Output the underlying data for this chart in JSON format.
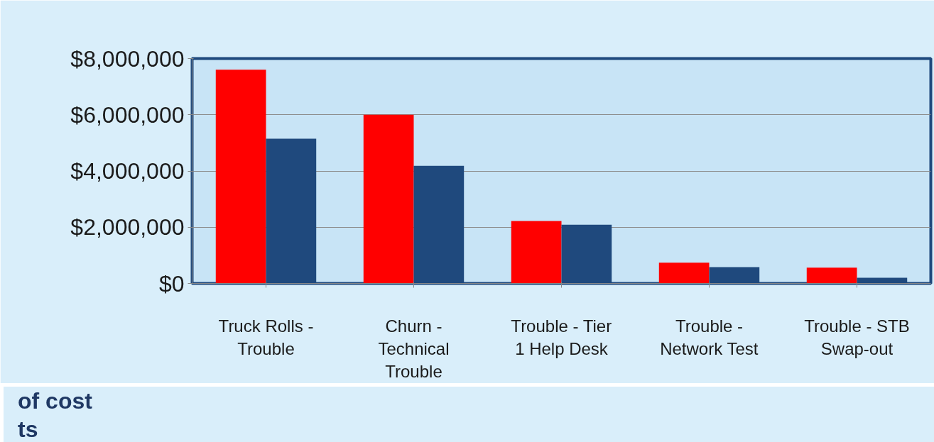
{
  "chart_data": {
    "type": "bar",
    "categories": [
      "Truck Rolls - Trouble",
      "Churn - Technical Trouble",
      "Trouble - Tier 1 Help Desk",
      "Trouble - Network Test",
      "Trouble - STB Swap-out"
    ],
    "series": [
      {
        "color": "#ff0000",
        "values": [
          7600000,
          6000000,
          2220000,
          740000,
          560000
        ]
      },
      {
        "color": "#1f497d",
        "values": [
          5150000,
          4180000,
          2090000,
          580000,
          200000
        ]
      }
    ],
    "ylim": [
      0,
      8000000
    ],
    "yticks": [
      {
        "value": 0,
        "label": "$0"
      },
      {
        "value": 2000000,
        "label": "$2,000,000"
      },
      {
        "value": 4000000,
        "label": "$4,000,000"
      },
      {
        "value": 6000000,
        "label": "$6,000,000"
      },
      {
        "value": 8000000,
        "label": "$8,000,000"
      }
    ],
    "grid": "y",
    "annotations": [
      "of cost",
      "ts"
    ]
  }
}
